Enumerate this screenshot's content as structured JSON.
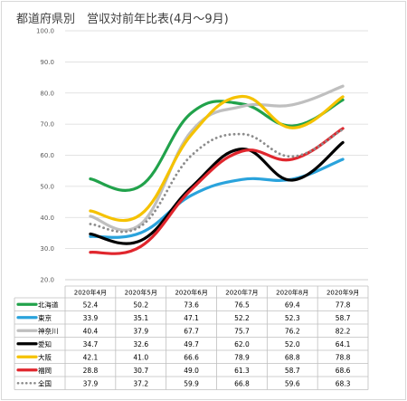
{
  "chart_data": {
    "type": "line",
    "title": "都道府県別　営収対前年比表(4月～9月)",
    "categories": [
      "2020年4月",
      "2020年5月",
      "2020年6月",
      "2020年7月",
      "2020年8月",
      "2020年9月"
    ],
    "ylim": [
      20,
      100
    ],
    "yticks": [
      "20.0",
      "30.0",
      "40.0",
      "50.0",
      "60.0",
      "70.0",
      "80.0",
      "90.0",
      "100.0"
    ],
    "grid": true,
    "legend": "data-table",
    "series": [
      {
        "name": "北海道",
        "color": "#21a24b",
        "dashed": false,
        "values": [
          52.4,
          50.2,
          73.6,
          76.5,
          69.4,
          77.8
        ],
        "labels": [
          "52.4",
          "50.2",
          "73.6",
          "76.5",
          "69.4",
          "77.8"
        ]
      },
      {
        "name": "東京",
        "color": "#2aa3dc",
        "dashed": false,
        "values": [
          33.9,
          35.1,
          47.1,
          52.2,
          52.3,
          58.7
        ],
        "labels": [
          "33.9",
          "35.1",
          "47.1",
          "52.2",
          "52.3",
          "58.7"
        ]
      },
      {
        "name": "神奈川",
        "color": "#bfbfbf",
        "dashed": false,
        "values": [
          40.4,
          37.9,
          67.7,
          75.7,
          76.2,
          82.2
        ],
        "labels": [
          "40.4",
          "37.9",
          "67.7",
          "75.7",
          "76.2",
          "82.2"
        ]
      },
      {
        "name": "愛知",
        "color": "#000000",
        "dashed": false,
        "values": [
          34.7,
          32.6,
          49.7,
          62.0,
          52.0,
          64.1
        ],
        "labels": [
          "34.7",
          "32.6",
          "49.7",
          "62.0",
          "52.0",
          "64.1"
        ]
      },
      {
        "name": "大阪",
        "color": "#f5c200",
        "dashed": false,
        "values": [
          42.1,
          41.0,
          66.6,
          78.9,
          68.8,
          78.8
        ],
        "labels": [
          "42.1",
          "41.0",
          "66.6",
          "78.9",
          "68.8",
          "78.8"
        ]
      },
      {
        "name": "福岡",
        "color": "#e0262d",
        "dashed": false,
        "values": [
          28.8,
          30.7,
          49.0,
          61.3,
          58.7,
          68.6
        ],
        "labels": [
          "28.8",
          "30.7",
          "49.0",
          "61.3",
          "58.7",
          "68.6"
        ]
      },
      {
        "name": "全国",
        "color": "#8c8c8c",
        "dashed": true,
        "values": [
          37.9,
          37.2,
          59.9,
          66.8,
          59.6,
          68.3
        ],
        "labels": [
          "37.9",
          "37.2",
          "59.9",
          "66.8",
          "59.6",
          "68.3"
        ]
      }
    ]
  }
}
